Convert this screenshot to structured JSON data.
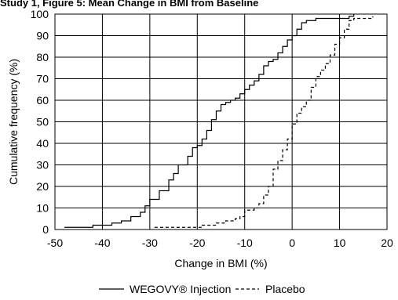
{
  "title": "Study 1, Figure 5: Mean Change in BMI from Baseline",
  "chart_data": {
    "type": "line",
    "xlabel": "Change in BMI (%)",
    "ylabel": "Cumulative frequency (%)",
    "xlim": [
      -50,
      20
    ],
    "ylim": [
      0,
      100
    ],
    "xticks": [
      "-50",
      "-40",
      "-30",
      "-20",
      "-10",
      "0",
      "10",
      "20"
    ],
    "yticks": [
      "0",
      "10",
      "20",
      "30",
      "40",
      "50",
      "60",
      "70",
      "80",
      "90",
      "100"
    ],
    "grid": true,
    "legend_position": "bottom",
    "series": [
      {
        "name": "WEGOVY® Injection",
        "style": "solid",
        "x": [
          -48,
          -45,
          -42,
          -40,
          -38,
          -36,
          -34,
          -32,
          -31,
          -30,
          -28,
          -26,
          -25,
          -24,
          -22,
          -21,
          -20,
          -19,
          -18,
          -17,
          -16,
          -15,
          -14,
          -13,
          -12,
          -11,
          -10,
          -9,
          -8,
          -7,
          -6,
          -5,
          -4,
          -3,
          -2,
          -1,
          0,
          1,
          2,
          3,
          5,
          7,
          9,
          11,
          12,
          13
        ],
        "y": [
          1,
          1,
          2,
          2,
          3,
          4,
          6,
          8,
          11,
          14,
          18,
          23,
          26,
          30,
          34,
          38,
          39,
          42,
          46,
          51,
          55,
          58,
          59,
          60,
          61,
          63,
          65,
          67,
          69,
          72,
          76,
          78,
          79,
          82,
          85,
          88,
          90,
          93,
          96,
          97,
          98,
          98,
          98,
          98,
          99,
          100
        ]
      },
      {
        "name": "Placebo",
        "style": "dashed",
        "x": [
          -29,
          -26,
          -23,
          -21,
          -19,
          -16,
          -14,
          -12,
          -11,
          -10,
          -8,
          -7,
          -6,
          -5,
          -4,
          -3,
          -2,
          -1,
          0,
          1,
          2,
          3,
          4,
          5,
          6,
          7,
          8,
          9,
          10,
          11,
          12,
          13,
          14,
          15,
          17
        ],
        "y": [
          1,
          1,
          1,
          1,
          2,
          3,
          4,
          5,
          6,
          9,
          10,
          12,
          16,
          20,
          28,
          32,
          37,
          42,
          49,
          54,
          57,
          60,
          66,
          71,
          74,
          77,
          81,
          86,
          89,
          93,
          97,
          98,
          98,
          98,
          99
        ]
      }
    ]
  }
}
